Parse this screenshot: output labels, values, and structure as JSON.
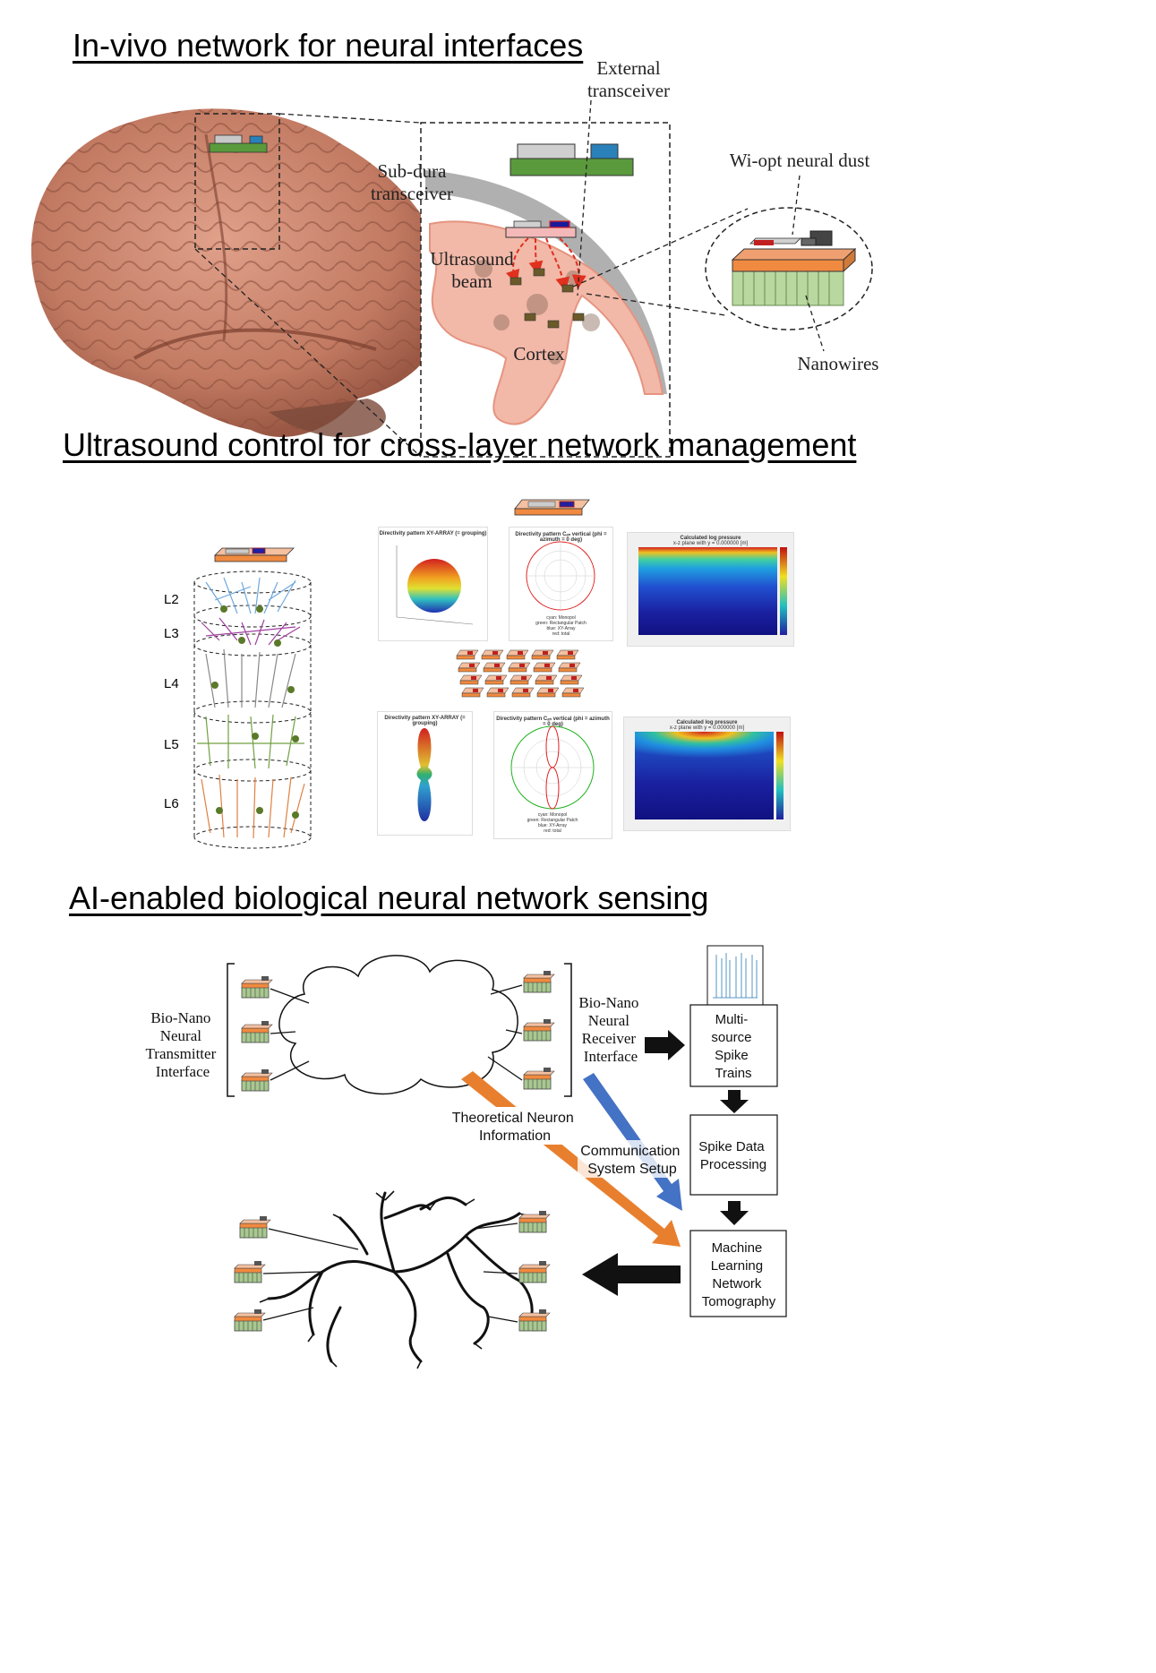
{
  "sections": {
    "s1": {
      "title": "In-vivo network for neural interfaces",
      "labels": {
        "external": [
          "External",
          "transceiver"
        ],
        "subdura": [
          "Sub-dura",
          "transceiver"
        ],
        "ultrasound": [
          "Ultrasound",
          "beam"
        ],
        "cortex": "Cortex",
        "dust": "Wi-opt neural dust",
        "nanowires": "Nanowires"
      }
    },
    "s2": {
      "title": "Ultrasound control for cross-layer network management",
      "layers": [
        "L2",
        "L3",
        "L4",
        "L5",
        "L6"
      ],
      "plots": {
        "p1_title": "Directivity pattern XY-ARRAY (= grouping)",
        "p2_title": "Directivity pattern Cₐₙ vertical (phi = azimuth = 0 deg)",
        "p3_title": "Calculated log pressure",
        "p3_sub": "x-z plane with y = 0.000000 [m]",
        "polar_legend": [
          "cyan: Monopol",
          "green: Rectangular Patch",
          "blue: XY-Array",
          "red: total"
        ],
        "p4_title": "Directivity pattern XY-ARRAY (= grouping)",
        "p5_title": "Directivity pattern Cₐₙ vertical (phi = azimuth = 0 deg)",
        "p6_title": "Calculated log pressure",
        "p6_sub": "x-z plane with y = 0.000000 [m]"
      }
    },
    "s3": {
      "title": "AI-enabled biological neural network sensing",
      "transmitter": [
        "Bio-Nano",
        "Neural",
        "Transmitter",
        "Interface"
      ],
      "receiver": [
        "Bio-Nano",
        "Neural",
        "Receiver",
        "Interface"
      ],
      "theoretical": [
        "Theoretical Neuron",
        "Information"
      ],
      "comm": [
        "Communication",
        "System Setup"
      ],
      "box1": [
        "Multi-",
        "source",
        "Spike",
        "Trains"
      ],
      "box2": [
        "Spike Data",
        "Processing"
      ],
      "box3": [
        "Machine",
        "Learning",
        "Network",
        "Tomography"
      ]
    }
  },
  "colors": {
    "brain": "#c8826a",
    "green": "#5a9a3c",
    "orange_arrow": "#e87f2e",
    "blue_arrow": "#4472c4",
    "skull": "#b0b0b0",
    "cortex": "#f2b8a8"
  }
}
